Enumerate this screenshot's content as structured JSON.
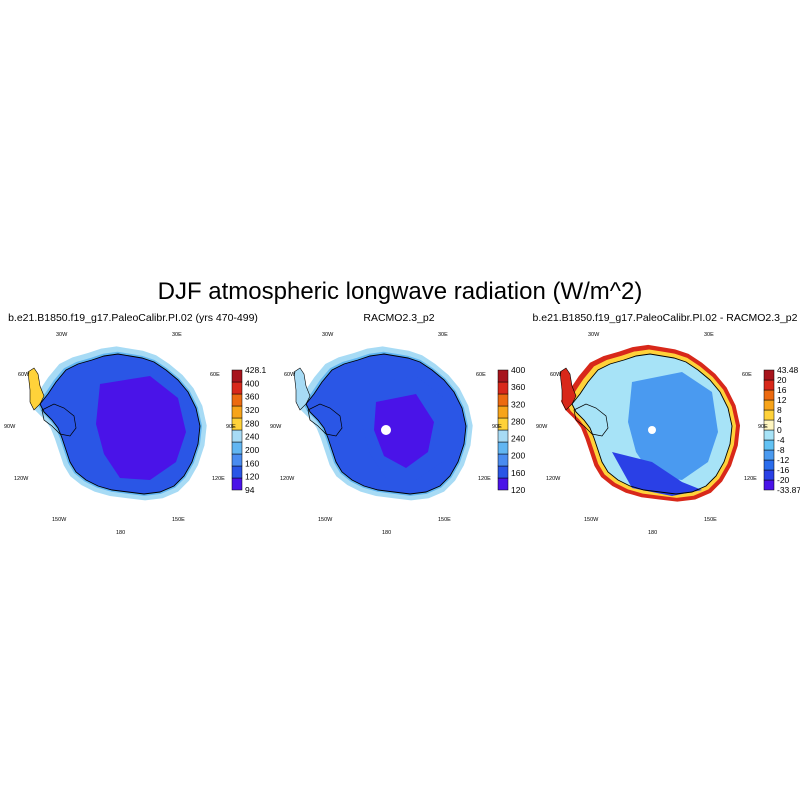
{
  "title": "DJF atmospheric longwave radiation (W/m^2)",
  "lon_labels": [
    "30W",
    "30E",
    "60W",
    "60E",
    "90W",
    "90E",
    "120W",
    "120E",
    "150W",
    "150E",
    "180"
  ],
  "panels": [
    {
      "subtitle": "b.e21.B1850.f19_g17.PaleoCalibr.PI.02 (yrs 470-499)",
      "colorbar": {
        "colors": [
          "#4a13e8",
          "#2a56e6",
          "#4a8cf0",
          "#62b6f2",
          "#a7dbf5",
          "#ffd23a",
          "#f7a41a",
          "#ec6a10",
          "#d8281a",
          "#a7141c"
        ],
        "labels": [
          "428.1",
          "400",
          "360",
          "320",
          "280",
          "240",
          "200",
          "160",
          "120",
          "94"
        ]
      }
    },
    {
      "subtitle": "RACMO2.3_p2",
      "colorbar": {
        "colors": [
          "#4a13e8",
          "#2a56e6",
          "#4a8cf0",
          "#62b6f2",
          "#a7dbf5",
          "#ffd23a",
          "#f7a41a",
          "#ec6a10",
          "#d8281a",
          "#a7141c"
        ],
        "labels": [
          "400",
          "360",
          "320",
          "280",
          "240",
          "200",
          "160",
          "120"
        ]
      }
    },
    {
      "subtitle": "b.e21.B1850.f19_g17.PaleoCalibr.PI.02 - RACMO2.3_p2",
      "colorbar": {
        "colors": [
          "#4a13e8",
          "#2a40e6",
          "#2a6cec",
          "#4a9af0",
          "#62c2f4",
          "#a7e3f7",
          "#fff6c0",
          "#ffd23a",
          "#f7a41a",
          "#ec6a10",
          "#d8281a",
          "#a7141c"
        ],
        "labels": [
          "43.48",
          "20",
          "16",
          "12",
          "8",
          "4",
          "0",
          "-4",
          "-8",
          "-12",
          "-16",
          "-20",
          "-33.87"
        ]
      }
    }
  ]
}
